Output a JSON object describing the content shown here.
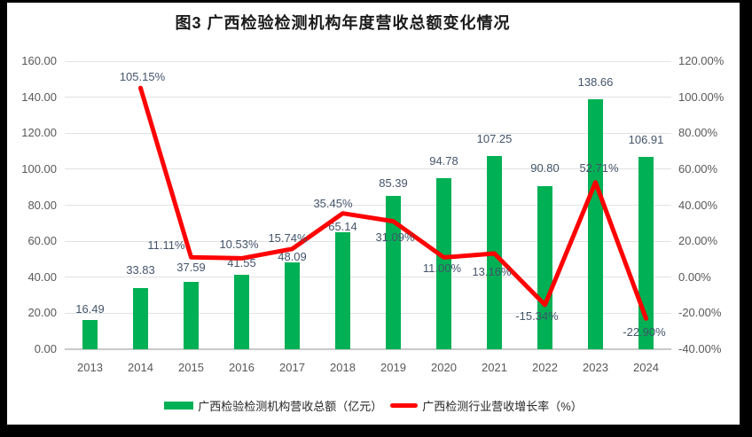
{
  "title": "图3 广西检验检测机构年度营收总额变化情况",
  "chart_data": {
    "type": "combo-bar-line",
    "title": "图3 广西检验检测机构年度营收总额变化情况",
    "categories": [
      "2013",
      "2014",
      "2015",
      "2016",
      "2017",
      "2018",
      "2019",
      "2020",
      "2021",
      "2022",
      "2023",
      "2024"
    ],
    "series": [
      {
        "name": "广西检验检测机构营收总额（亿元）",
        "type": "bar",
        "axis": "left",
        "color": "#00b055",
        "values": [
          16.49,
          33.83,
          37.59,
          41.55,
          48.09,
          65.14,
          85.39,
          94.78,
          107.25,
          90.8,
          138.66,
          106.91
        ],
        "labels": [
          "16.49",
          "33.83",
          "37.59",
          "41.55",
          "48.09",
          "65.14",
          "85.39",
          "94.78",
          "107.25",
          "90.80",
          "138.66",
          "106.91"
        ]
      },
      {
        "name": "广西检测行业营收增长率（%）",
        "type": "line",
        "axis": "right",
        "color": "#ff0000",
        "values": [
          null,
          105.15,
          11.11,
          10.53,
          15.74,
          35.45,
          31.09,
          11.0,
          13.16,
          -15.34,
          52.71,
          -22.9
        ],
        "labels": [
          null,
          "105.15%",
          "11.11%",
          "10.53%",
          "15.74%",
          "35.45%",
          "31.09%",
          "11.00%",
          "13.16%",
          "-15.34%",
          "52.71%",
          "-22.90%"
        ]
      }
    ],
    "left_axis": {
      "min": 0,
      "max": 160,
      "step": 20,
      "tick_labels": [
        "0.00",
        "20.00",
        "40.00",
        "60.00",
        "80.00",
        "100.00",
        "120.00",
        "140.00",
        "160.00"
      ]
    },
    "right_axis": {
      "min": -40,
      "max": 120,
      "step": 20,
      "tick_labels": [
        "-40.00%",
        "-20.00%",
        "0.00%",
        "20.00%",
        "40.00%",
        "60.00%",
        "80.00%",
        "100.00%",
        "120.00%"
      ]
    },
    "grid": true,
    "legend_position": "bottom"
  }
}
